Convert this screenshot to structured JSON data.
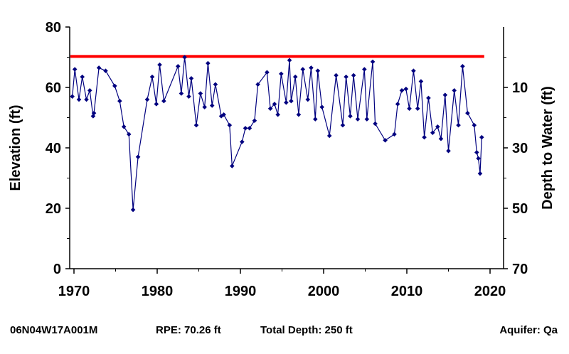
{
  "chart_data": {
    "type": "line",
    "xlabel": "",
    "ylabel": "Elevation (ft)",
    "y2label": "Depth to Water (ft)",
    "xlim": [
      1970,
      2020
    ],
    "ylim": [
      0,
      80
    ],
    "y2lim": [
      70,
      -10
    ],
    "xticks": [
      "1970",
      "1980",
      "1990",
      "2000",
      "2010",
      "2020"
    ],
    "yticks": [
      "0",
      "20",
      "40",
      "60",
      "80"
    ],
    "y2ticks": [
      "70",
      "50",
      "30",
      "10"
    ],
    "grid": false,
    "reference_line": {
      "value": 70.26,
      "color": "#ff0000"
    },
    "series": [
      {
        "color": "#00007f",
        "x": [
          1969.8,
          1970.1,
          1970.6,
          1971.0,
          1971.5,
          1971.9,
          1972.3,
          1972.4,
          1973.0,
          1973.8,
          1974.9,
          1975.5,
          1976.0,
          1976.6,
          1977.1,
          1977.7,
          1978.8,
          1979.4,
          1979.9,
          1980.3,
          1980.8,
          1982.5,
          1982.9,
          1983.3,
          1983.8,
          1984.1,
          1984.7,
          1985.2,
          1985.7,
          1986.1,
          1986.6,
          1987.0,
          1987.7,
          1988.0,
          1988.7,
          1989.0,
          1990.2,
          1990.6,
          1991.1,
          1991.7,
          1992.1,
          1993.2,
          1993.6,
          1994.1,
          1994.5,
          1994.9,
          1995.5,
          1995.9,
          1996.1,
          1996.6,
          1997.0,
          1997.5,
          1998.1,
          1998.5,
          1999.0,
          1999.3,
          1999.8,
          2000.7,
          2001.5,
          2002.3,
          2002.7,
          2003.2,
          2003.6,
          2004.1,
          2004.9,
          2005.2,
          2005.9,
          2006.2,
          2007.4,
          2008.5,
          2008.9,
          2009.4,
          2009.9,
          2010.3,
          2010.8,
          2011.3,
          2011.7,
          2012.1,
          2012.6,
          2013.1,
          2013.7,
          2014.1,
          2014.6,
          2015.0,
          2015.7,
          2016.2,
          2016.7,
          2017.3,
          2018.1,
          2018.4,
          2018.6,
          2018.8,
          2019.0
        ],
        "y": [
          57,
          66,
          56,
          63.5,
          56,
          59,
          50.5,
          51.5,
          66.5,
          65.5,
          60.5,
          55.5,
          47,
          44.5,
          19.5,
          37,
          56,
          63.5,
          54.5,
          67.5,
          55.5,
          67,
          58,
          70,
          57,
          63,
          47.5,
          58,
          53.5,
          68,
          54,
          61,
          50.5,
          51,
          47.5,
          34,
          42,
          46.5,
          46.5,
          49,
          61,
          65,
          53,
          54.5,
          51,
          64.5,
          55,
          69,
          55.5,
          63.5,
          51,
          66,
          56,
          66.5,
          49.5,
          65.5,
          53.5,
          44,
          64,
          47.5,
          63.5,
          50.5,
          64,
          49.5,
          66,
          49.5,
          68.5,
          48,
          42.5,
          44.5,
          54.5,
          59,
          59.5,
          53,
          65.5,
          53,
          62,
          43.5,
          56.5,
          45,
          47,
          43,
          57.5,
          39,
          59,
          47.5,
          67,
          51.5,
          47.5,
          38.5,
          36.5,
          31.5,
          43.5
        ]
      }
    ]
  },
  "footer": {
    "well_id": "06N04W17A001M",
    "rpe": "RPE: 70.26 ft",
    "total_depth": "Total Depth: 250 ft",
    "aquifer": "Aquifer: Qa"
  }
}
